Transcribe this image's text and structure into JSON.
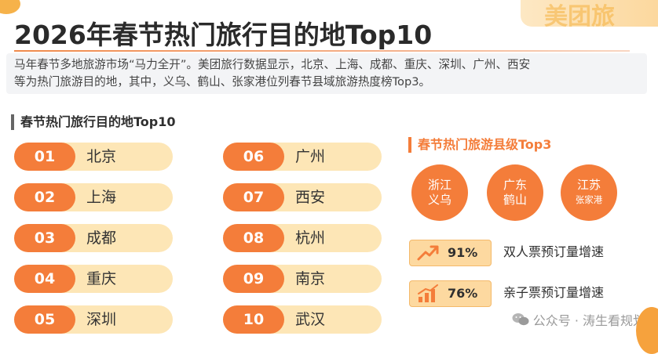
{
  "title": "2026年春节热门旅行目的地Top10",
  "header_deco_text": "美团旅",
  "intro": {
    "line1": "马年春节多地旅游市场“马力全开”。美团旅行数据显示，北京、上海、成都、重庆、深圳、广州、西安",
    "line2": "等为热门旅游目的地，其中，义乌、鹤山、张家港位列春节县域旅游热度榜Top3。"
  },
  "top10": {
    "heading": "春节热门旅行目的地Top10",
    "items": [
      {
        "num": "01",
        "city": "北京"
      },
      {
        "num": "02",
        "city": "上海"
      },
      {
        "num": "03",
        "city": "成都"
      },
      {
        "num": "04",
        "city": "重庆"
      },
      {
        "num": "05",
        "city": "深圳"
      },
      {
        "num": "06",
        "city": "广州"
      },
      {
        "num": "07",
        "city": "西安"
      },
      {
        "num": "08",
        "city": "杭州"
      },
      {
        "num": "09",
        "city": "南京"
      },
      {
        "num": "10",
        "city": "武汉"
      }
    ]
  },
  "county": {
    "heading": "春节热门旅游县级Top3",
    "items": [
      {
        "province": "浙江",
        "name": "义乌"
      },
      {
        "province": "广东",
        "name": "鹤山"
      },
      {
        "province": "江苏",
        "name": "张家港"
      }
    ]
  },
  "stats": [
    {
      "pct": "91%",
      "label": "双人票预订量增速",
      "icon": "trend-up-arrow-icon"
    },
    {
      "pct": "76%",
      "label": "亲子票预订量增速",
      "icon": "bar-growth-icon"
    }
  ],
  "watermark": "公众号 · 涛生看规划",
  "colors": {
    "accent": "#f47d3a",
    "pill_bg": "#fde6b6",
    "stat_bg": "#fdd9a0"
  }
}
